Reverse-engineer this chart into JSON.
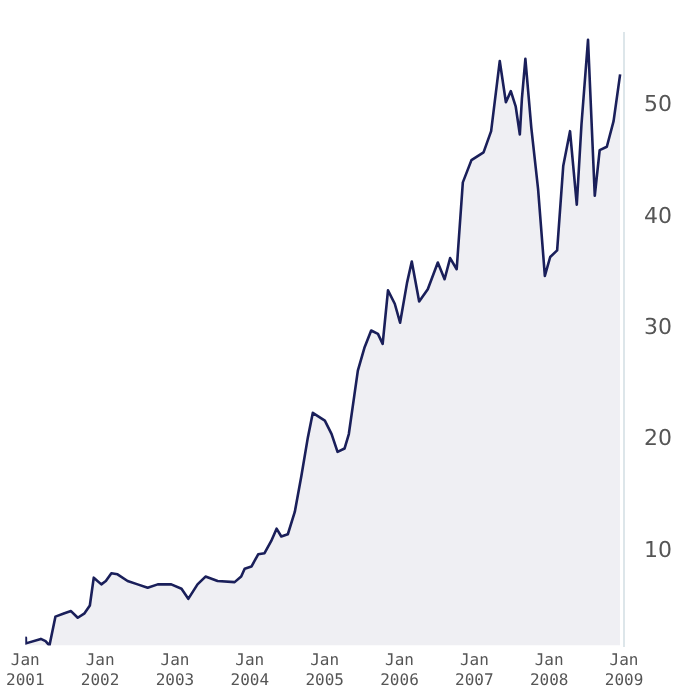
{
  "chart_data": {
    "type": "area",
    "x": [
      "2001-01-01",
      "2001-01-04",
      "2001-03-18",
      "2001-04-10",
      "2001-04-29",
      "2001-05-28",
      "2001-07-11",
      "2001-08-12",
      "2001-09-14",
      "2001-10-17",
      "2001-11-12",
      "2001-12-01",
      "2002-01-07",
      "2002-01-29",
      "2002-02-25",
      "2002-03-27",
      "2002-05-15",
      "2002-07-03",
      "2002-08-21",
      "2002-10-09",
      "2002-12-14",
      "2003-02-02",
      "2003-03-07",
      "2003-04-21",
      "2003-05-30",
      "2003-07-28",
      "2003-10-19",
      "2003-11-20",
      "2003-12-07",
      "2004-01-09",
      "2004-02-11",
      "2004-03-13",
      "2004-04-15",
      "2004-05-11",
      "2004-06-03",
      "2004-07-05",
      "2004-08-08",
      "2004-09-09",
      "2004-10-11",
      "2004-11-04",
      "2005-01-02",
      "2005-02-04",
      "2005-03-05",
      "2005-04-08",
      "2005-04-29",
      "2005-05-26",
      "2005-06-12",
      "2005-07-15",
      "2005-08-16",
      "2005-09-18",
      "2005-10-11",
      "2005-11-06",
      "2005-12-09",
      "2006-01-04",
      "2006-02-07",
      "2006-03-02",
      "2006-04-07",
      "2006-05-19",
      "2006-07-07",
      "2006-08-09",
      "2006-09-05",
      "2006-10-07",
      "2006-11-06",
      "2006-12-18",
      "2007-02-15",
      "2007-03-24",
      "2007-05-05",
      "2007-06-04",
      "2007-06-28",
      "2007-07-22",
      "2007-08-11",
      "2007-08-21",
      "2007-09-07",
      "2007-10-06",
      "2007-11-08",
      "2007-12-11",
      "2008-01-06",
      "2008-02-09",
      "2008-03-10",
      "2008-04-12",
      "2008-05-15",
      "2008-06-07",
      "2008-07-09",
      "2008-08-11",
      "2008-09-04",
      "2008-10-09",
      "2008-11-11",
      "2008-12-13"
    ],
    "series": [
      {
        "color": "#1a1f5a",
        "values": [
          2.2,
          1.7,
          2.1,
          1.9,
          1.5,
          4.1,
          4.4,
          4.6,
          4.0,
          4.4,
          5.1,
          7.6,
          7.0,
          7.3,
          8.0,
          7.9,
          7.3,
          7.0,
          6.7,
          7.0,
          7.0,
          6.6,
          5.7,
          7.0,
          7.7,
          7.3,
          7.2,
          7.7,
          8.4,
          8.6,
          9.7,
          9.8,
          10.9,
          12.0,
          11.3,
          11.5,
          13.5,
          16.7,
          20.2,
          22.4,
          21.7,
          20.5,
          18.9,
          19.2,
          20.5,
          24.0,
          26.2,
          28.3,
          29.8,
          29.5,
          28.6,
          33.4,
          32.2,
          30.5,
          34.1,
          36.0,
          32.4,
          33.5,
          35.9,
          34.4,
          36.3,
          35.3,
          43.1,
          45.1,
          45.8,
          47.7,
          54.0,
          50.3,
          51.3,
          49.9,
          47.4,
          50.6,
          54.2,
          48.0,
          42.5,
          34.7,
          36.4,
          37.0,
          44.6,
          47.7,
          41.1,
          48.3,
          55.9,
          41.9,
          46.0,
          46.3,
          48.6,
          52.8
        ]
      }
    ],
    "xlim": [
      "2001-01-01",
      "2009-01-01"
    ],
    "xticks": [
      {
        "value": "2001-01-01",
        "label": "Jan 2001"
      },
      {
        "value": "2002-01-01",
        "label": "Jan 2002"
      },
      {
        "value": "2003-01-01",
        "label": "Jan 2003"
      },
      {
        "value": "2004-01-01",
        "label": "Jan 2004"
      },
      {
        "value": "2005-01-01",
        "label": "Jan 2005"
      },
      {
        "value": "2006-01-01",
        "label": "Jan 2006"
      },
      {
        "value": "2007-01-01",
        "label": "Jan 2007"
      },
      {
        "value": "2008-01-01",
        "label": "Jan 2008"
      },
      {
        "value": "2009-01-01",
        "label": "Jan 2009"
      }
    ],
    "ylim": [
      1.5,
      56.5
    ],
    "yticks": [
      10,
      20,
      30,
      40,
      50
    ],
    "grid": false,
    "legend": false,
    "marker": "none",
    "line_style": "solid"
  }
}
